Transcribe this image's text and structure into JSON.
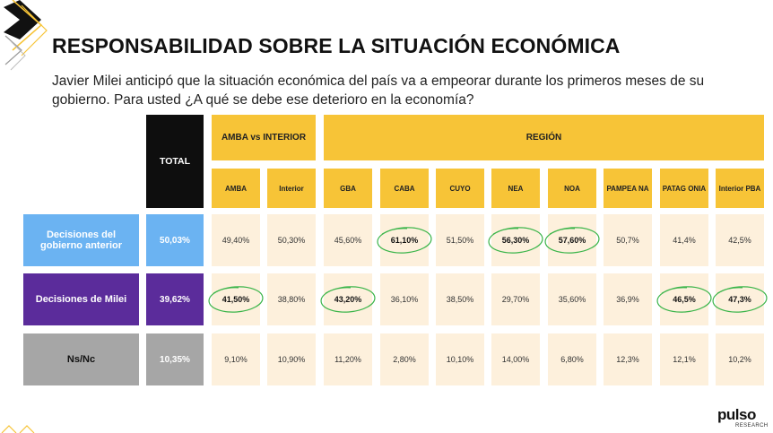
{
  "header": {
    "title": "RESPONSABILIDAD SOBRE LA SITUACIÓN ECONÓMICA",
    "subtitle": "Javier Milei anticipó que la situación económica del país va a empeorar durante los primeros meses de su gobierno. Para usted ¿A qué se debe ese deterioro en la economía?"
  },
  "table": {
    "total_label": "TOTAL",
    "groups": [
      {
        "label": "AMBA vs INTERIOR"
      },
      {
        "label": "REGIÓN"
      }
    ],
    "columns": [
      "AMBA",
      "Interior",
      "GBA",
      "CABA",
      "CUYO",
      "NEA",
      "NOA",
      "PAMPEA NA",
      "PATAG ONIA",
      "Interior PBA"
    ],
    "rows": [
      {
        "label": "Decisiones del gobierno anterior",
        "color": "#6BB3F2",
        "total": "50,03%",
        "values": [
          "49,40%",
          "50,30%",
          "45,60%",
          "61,10%",
          "51,50%",
          "56,30%",
          "57,60%",
          "50,7%",
          "41,4%",
          "42,5%"
        ],
        "highlight": [
          false,
          false,
          false,
          true,
          false,
          true,
          true,
          false,
          false,
          false
        ]
      },
      {
        "label": "Decisiones de Milei",
        "color": "#5B2C9B",
        "total": "39,62%",
        "values": [
          "41,50%",
          "38,80%",
          "43,20%",
          "36,10%",
          "38,50%",
          "29,70%",
          "35,60%",
          "36,9%",
          "46,5%",
          "47,3%"
        ],
        "highlight": [
          true,
          false,
          true,
          false,
          false,
          false,
          false,
          false,
          true,
          true
        ]
      },
      {
        "label": "Ns/Nc",
        "color": "#A6A6A6",
        "total": "10,35%",
        "values": [
          "9,10%",
          "10,90%",
          "11,20%",
          "2,80%",
          "10,10%",
          "14,00%",
          "6,80%",
          "12,3%",
          "12,1%",
          "10,2%"
        ],
        "highlight": [
          false,
          false,
          false,
          false,
          false,
          false,
          false,
          false,
          false,
          false
        ]
      }
    ]
  },
  "brand": {
    "name": "pulso",
    "sub": "RESEARCH",
    "accent": "#F7C437"
  }
}
